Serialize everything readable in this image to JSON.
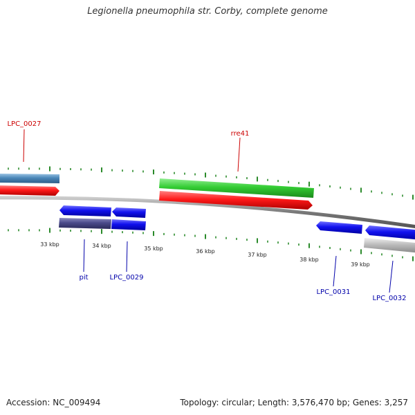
{
  "title": "Legionella pneumophila str. Corby, complete genome",
  "accession": "Accession: NC_009494",
  "summary": "Topology: circular; Length: 3,576,470 bp; Genes: 3,257",
  "colors": {
    "backbone": "#8a8a8a",
    "tick": "#2a8a2a",
    "gene_red": "#ee1111",
    "gene_green": "#33cc33",
    "gene_blue": "#1111ee",
    "gene_steel": "#4a86b8",
    "gene_slate": "#4a4a8a",
    "gene_grey": "#bbbbbb"
  },
  "scale_labels": [
    "33 kbp",
    "34 kbp",
    "35 kbp",
    "36 kbp",
    "37 kbp",
    "38 kbp",
    "39 kbp"
  ],
  "gene_labels": {
    "lpc_0027": "LPC_0027",
    "rre41": "rre41",
    "pit": "pit",
    "lpc_0029": "LPC_0029",
    "lpc_0031": "LPC_0031",
    "lpc_0032": "LPC_0032"
  }
}
